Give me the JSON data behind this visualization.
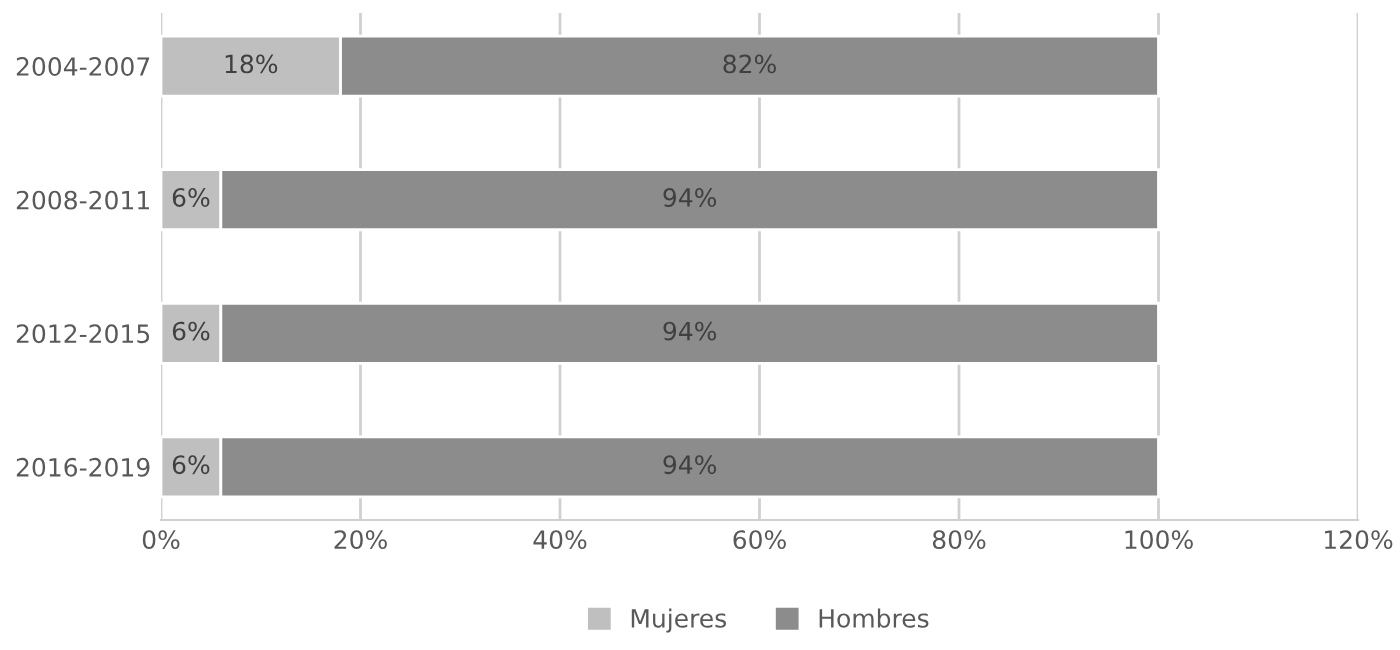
{
  "chart_data": {
    "type": "bar",
    "orientation": "horizontal",
    "stacked": true,
    "categories": [
      "2004-2007",
      "2008-2011",
      "2012-2015",
      "2016-2019"
    ],
    "series": [
      {
        "name": "Mujeres",
        "color": "#bfbfbf",
        "values": [
          18,
          6,
          6,
          6
        ],
        "value_labels": [
          "18%",
          "6%",
          "6%",
          "6%"
        ]
      },
      {
        "name": "Hombres",
        "color": "#8c8c8c",
        "values": [
          82,
          94,
          94,
          94
        ],
        "value_labels": [
          "82%",
          "94%",
          "94%",
          "94%"
        ]
      }
    ],
    "xlim": [
      0,
      120
    ],
    "xticks": [
      {
        "value": 0,
        "label": "0%"
      },
      {
        "value": 20,
        "label": "20%"
      },
      {
        "value": 40,
        "label": "40%"
      },
      {
        "value": 60,
        "label": "60%"
      },
      {
        "value": 80,
        "label": "80%"
      },
      {
        "value": 100,
        "label": "100%"
      },
      {
        "value": 120,
        "label": "120%"
      }
    ],
    "grid": "x",
    "legend": "bottom"
  }
}
